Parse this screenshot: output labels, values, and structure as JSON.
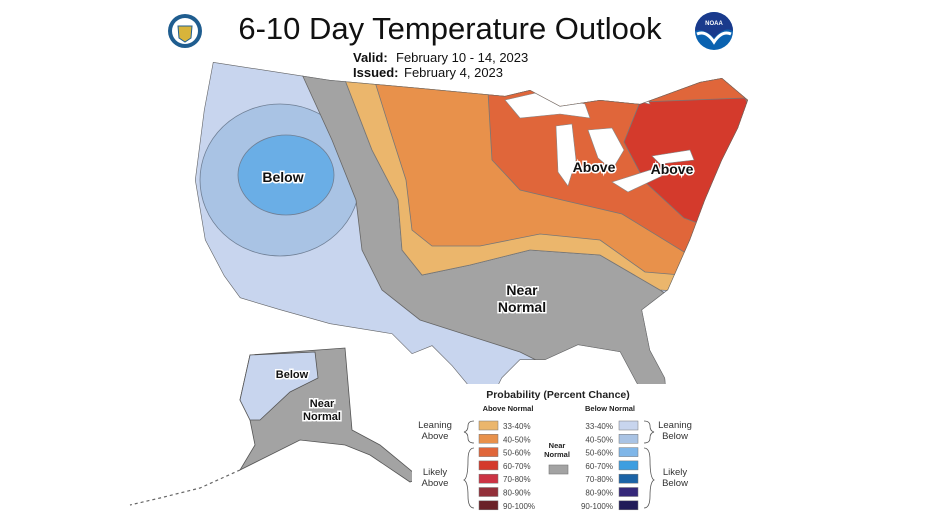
{
  "header": {
    "title": "6-10 Day Temperature Outlook",
    "valid_label": "Valid:",
    "valid_value": "February 10 - 14, 2023",
    "issued_label": "Issued:",
    "issued_value": "February 4, 2023",
    "left_logo": "dept-of-commerce-seal",
    "right_logo": "noaa-logo",
    "noaa_text": "NOAA"
  },
  "map_labels": {
    "below_west": "Below",
    "above_midwest": "Above",
    "above_northeast": "Above",
    "near_normal_1": "Near",
    "near_normal_2": "Normal",
    "alaska_below": "Below",
    "alaska_near_1": "Near",
    "alaska_near_2": "Normal"
  },
  "colors": {
    "near_normal": "#a3a3a3",
    "lakes": "#ffffff"
  },
  "legend": {
    "title": "Probability (Percent Chance)",
    "above_header": "Above Normal",
    "below_header": "Below Normal",
    "near_1": "Near",
    "near_2": "Normal",
    "leaning_above_1": "Leaning",
    "leaning_above_2": "Above",
    "likely_above_1": "Likely",
    "likely_above_2": "Above",
    "leaning_below_1": "Leaning",
    "leaning_below_2": "Below",
    "likely_below_1": "Likely",
    "likely_below_2": "Below",
    "above": [
      {
        "range": "33-40%",
        "color": "#ebb66c"
      },
      {
        "range": "40-50%",
        "color": "#e8914b"
      },
      {
        "range": "50-60%",
        "color": "#e0663a"
      },
      {
        "range": "60-70%",
        "color": "#d43a2c"
      },
      {
        "range": "70-80%",
        "color": "#cc3344"
      },
      {
        "range": "80-90%",
        "color": "#93303a"
      },
      {
        "range": "90-100%",
        "color": "#6a2228"
      }
    ],
    "below": [
      {
        "range": "33-40%",
        "color": "#c8d5ee"
      },
      {
        "range": "40-50%",
        "color": "#a9c3e4"
      },
      {
        "range": "50-60%",
        "color": "#7fb6e8"
      },
      {
        "range": "60-70%",
        "color": "#3e9ee0"
      },
      {
        "range": "70-80%",
        "color": "#1b63a6"
      },
      {
        "range": "80-90%",
        "color": "#35287a"
      },
      {
        "range": "90-100%",
        "color": "#211b58"
      }
    ]
  }
}
